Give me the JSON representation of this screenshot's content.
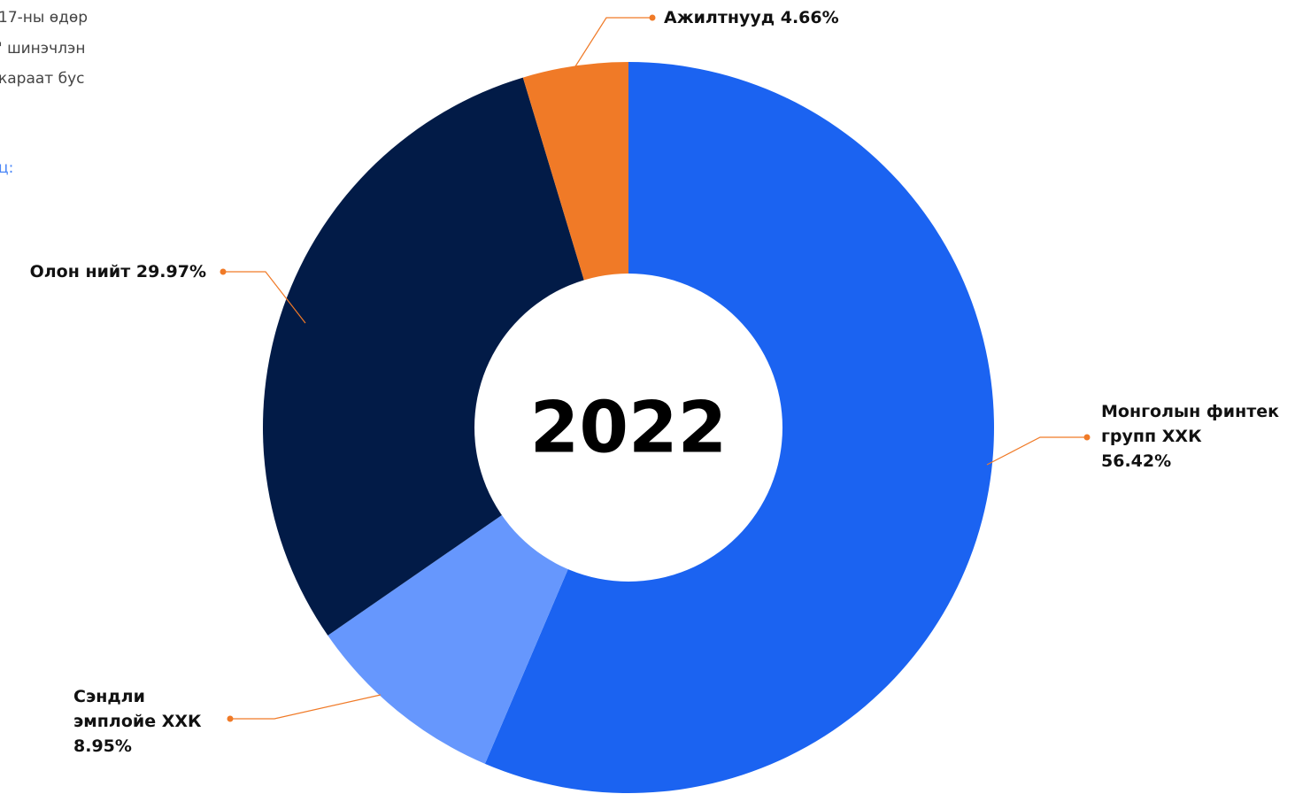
{
  "side_text": [
    "17-ны өдөр",
    "' шинэчлэн",
    "караат бус",
    "ц:"
  ],
  "chart_data": {
    "type": "donut",
    "center_label": "2022",
    "categories": [
      "Монголын финтек групп ХХК",
      "Сэндли эмплойе ХХК",
      "Олон нийт",
      "Ажилтнууд"
    ],
    "values": [
      56.42,
      8.95,
      29.97,
      4.66
    ],
    "value_labels": [
      "56.42%",
      "8.95%",
      "29.97%",
      "4.66%"
    ],
    "colors": [
      "#1b63f1",
      "#6697fd",
      "#021b47",
      "#f07a27"
    ]
  }
}
